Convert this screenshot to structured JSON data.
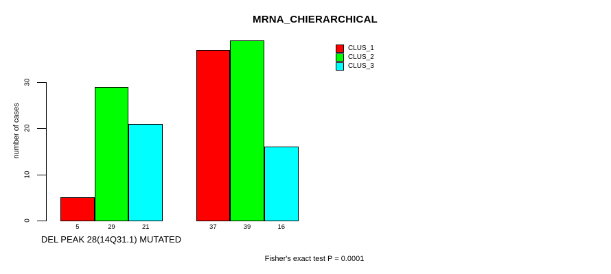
{
  "title": "MRNA_CHIERARCHICAL",
  "y_axis": {
    "label": "number of cases"
  },
  "group_label": "DEL PEAK 28(14Q31.1) MUTATED",
  "annotation": "Fisher's exact test P = 0.0001",
  "legend": {
    "items": [
      {
        "label": "CLUS_1",
        "color": "#ff0000"
      },
      {
        "label": "CLUS_2",
        "color": "#00ff00"
      },
      {
        "label": "CLUS_3",
        "color": "#00ffff"
      }
    ]
  },
  "chart_data": {
    "type": "bar",
    "title": "MRNA_CHIERARCHICAL",
    "xlabel": "",
    "ylabel": "number of cases",
    "ylim": [
      0,
      39.5
    ],
    "yticks": [
      0,
      10,
      20,
      30
    ],
    "grid": false,
    "legend_position": "top-right",
    "categories": [
      "DEL PEAK 28(14Q31.1) MUTATED",
      ""
    ],
    "series": [
      {
        "name": "CLUS_1",
        "color": "#ff0000",
        "values": [
          5,
          37
        ]
      },
      {
        "name": "CLUS_2",
        "color": "#00ff00",
        "values": [
          29,
          39
        ]
      },
      {
        "name": "CLUS_3",
        "color": "#00ffff",
        "values": [
          21,
          16
        ]
      }
    ],
    "bar_labels": [
      [
        "5",
        "29",
        "21"
      ],
      [
        "37",
        "39",
        "16"
      ]
    ],
    "annotation": "Fisher's exact test P = 0.0001"
  }
}
